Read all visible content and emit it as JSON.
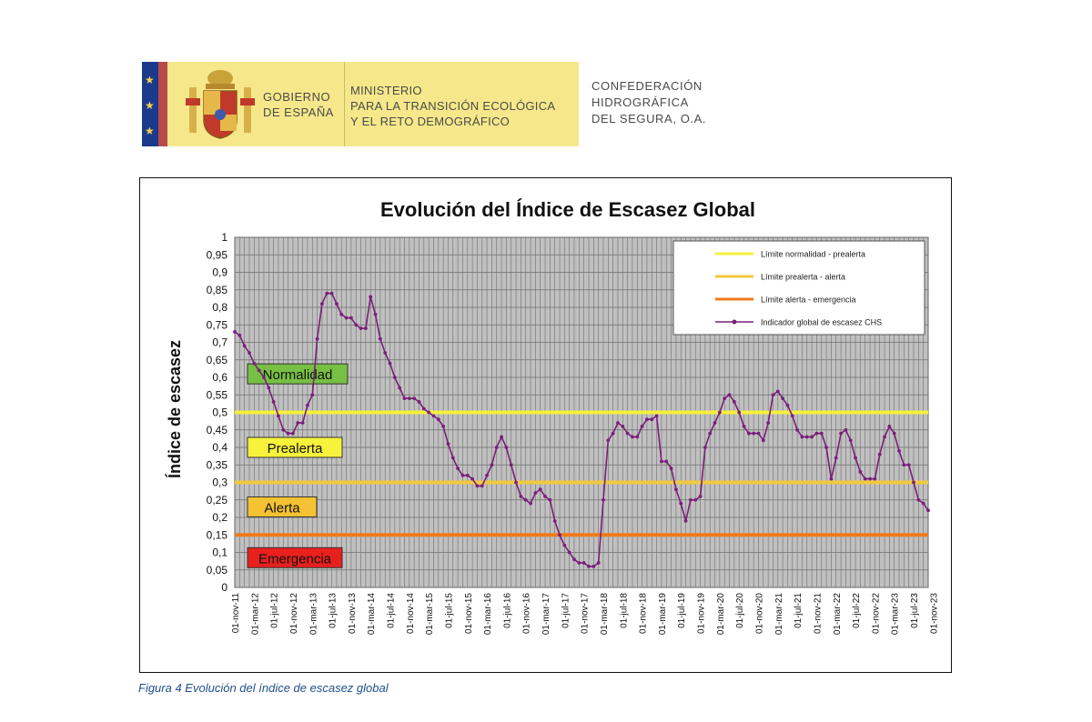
{
  "header": {
    "gov_line1": "GOBIERNO",
    "gov_line2": "DE ESPAÑA",
    "ministry_line1": "MINISTERIO",
    "ministry_line2": "PARA LA TRANSICIÓN ECOLÓGICA",
    "ministry_line3": "Y EL RETO DEMOGRÁFICO",
    "agency_line1": "CONFEDERACIÓN",
    "agency_line2": "HIDROGRÁFICA",
    "agency_line3": "DEL SEGURA, O.A."
  },
  "caption": "Figura 4 Evolución del índice de escasez global",
  "colors": {
    "plot_bg": "#c0c0c0",
    "line": "#7a1f7a",
    "normalidad_limit": "#f5f03a",
    "prealerta_limit": "#f2c93c",
    "alerta_limit": "#f07a1a",
    "zone_normalidad": "#77c043",
    "zone_prealerta": "#f7f23a",
    "zone_alerta": "#f4c232",
    "zone_emergencia": "#e8201e"
  },
  "chart_data": {
    "type": "line",
    "title": "Evolución del Índice de Escasez Global",
    "ylabel": "Índice de escasez",
    "xlabel": "",
    "ylim": [
      0,
      1
    ],
    "yticks": [
      "0",
      "0,05",
      "0,1",
      "0,15",
      "0,2",
      "0,25",
      "0,3",
      "0,35",
      "0,4",
      "0,45",
      "0,5",
      "0,55",
      "0,6",
      "0,65",
      "0,7",
      "0,75",
      "0,8",
      "0,85",
      "0,9",
      "0,95",
      "1"
    ],
    "xticks": [
      "01-nov-11",
      "01-mar-12",
      "01-jul-12",
      "01-nov-12",
      "01-mar-13",
      "01-jul-13",
      "01-nov-13",
      "01-mar-14",
      "01-jul-14",
      "01-nov-14",
      "01-mar-15",
      "01-jul-15",
      "01-nov-15",
      "01-mar-16",
      "01-jul-16",
      "01-nov-16",
      "01-mar-17",
      "01-jul-17",
      "01-nov-17",
      "01-mar-18",
      "01-jul-18",
      "01-nov-18",
      "01-mar-19",
      "01-jul-19",
      "01-nov-19",
      "01-mar-20",
      "01-jul-20",
      "01-nov-20",
      "01-mar-21",
      "01-jul-21",
      "01-nov-21",
      "01-mar-22",
      "01-jul-22",
      "01-nov-22",
      "01-mar-23",
      "01-jul-23",
      "01-nov-23"
    ],
    "legend": [
      "Límite normalidad - prealerta",
      "Límite prealerta - alerta",
      "Límite alerta - emergencia",
      "Indicador global de escasez CHS"
    ],
    "thresholds": [
      {
        "name": "Límite normalidad - prealerta",
        "value": 0.5
      },
      {
        "name": "Límite prealerta - alerta",
        "value": 0.3
      },
      {
        "name": "Límite alerta - emergencia",
        "value": 0.15
      }
    ],
    "zones": [
      {
        "label": "Normalidad",
        "value": 0.61
      },
      {
        "label": "Prealerta",
        "value": 0.4
      },
      {
        "label": "Alerta",
        "value": 0.23
      },
      {
        "label": "Emergencia",
        "value": 0.085
      }
    ],
    "series": [
      {
        "name": "Indicador global de escasez CHS",
        "start": "nov-11",
        "frequency": "monthly",
        "values": [
          0.73,
          0.72,
          0.69,
          0.67,
          0.64,
          0.62,
          0.6,
          0.57,
          0.53,
          0.49,
          0.45,
          0.44,
          0.44,
          0.47,
          0.47,
          0.52,
          0.55,
          0.71,
          0.81,
          0.84,
          0.84,
          0.81,
          0.78,
          0.77,
          0.77,
          0.75,
          0.74,
          0.74,
          0.83,
          0.78,
          0.71,
          0.67,
          0.64,
          0.6,
          0.57,
          0.54,
          0.54,
          0.54,
          0.53,
          0.51,
          0.5,
          0.49,
          0.48,
          0.46,
          0.41,
          0.37,
          0.34,
          0.32,
          0.32,
          0.31,
          0.29,
          0.29,
          0.32,
          0.35,
          0.4,
          0.43,
          0.4,
          0.35,
          0.3,
          0.26,
          0.25,
          0.24,
          0.27,
          0.28,
          0.26,
          0.25,
          0.19,
          0.15,
          0.12,
          0.1,
          0.08,
          0.07,
          0.07,
          0.06,
          0.06,
          0.07,
          0.25,
          0.42,
          0.44,
          0.47,
          0.46,
          0.44,
          0.43,
          0.43,
          0.46,
          0.48,
          0.48,
          0.49,
          0.36,
          0.36,
          0.34,
          0.28,
          0.24,
          0.19,
          0.25,
          0.25,
          0.26,
          0.4,
          0.44,
          0.47,
          0.5,
          0.54,
          0.55,
          0.53,
          0.5,
          0.46,
          0.44,
          0.44,
          0.44,
          0.42,
          0.47,
          0.55,
          0.56,
          0.54,
          0.52,
          0.49,
          0.45,
          0.43,
          0.43,
          0.43,
          0.44,
          0.44,
          0.4,
          0.31,
          0.37,
          0.44,
          0.45,
          0.42,
          0.37,
          0.33,
          0.31,
          0.31,
          0.31,
          0.38,
          0.43,
          0.46,
          0.44,
          0.39,
          0.35,
          0.35,
          0.3,
          0.25,
          0.24,
          0.22
        ]
      }
    ]
  }
}
